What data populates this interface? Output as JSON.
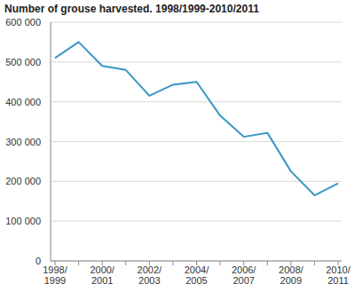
{
  "chart_data": {
    "type": "line",
    "title": "Number of grouse harvested. 1998/1999-2010/2011",
    "categories": [
      "1998/1999",
      null,
      "2000/2001",
      null,
      "2002/2003",
      null,
      "2004/2005",
      null,
      "2006/2007",
      null,
      "2008/2009",
      null,
      "2010/2011"
    ],
    "values": [
      510000,
      550000,
      490000,
      480000,
      415000,
      443000,
      450000,
      365000,
      312000,
      322000,
      225000,
      165000,
      195000
    ],
    "color": "#3a96c6",
    "ylim": [
      0,
      600000
    ],
    "yticks": [
      0,
      {
        "value": 100000,
        "label": "100 000"
      },
      {
        "value": 200000,
        "label": "200 000"
      },
      {
        "value": 300000,
        "label": "300 000"
      },
      {
        "value": 400000,
        "label": "400 000"
      },
      {
        "value": 500000,
        "label": "500 000"
      },
      {
        "value": 600000,
        "label": "600 000"
      }
    ],
    "grid": true
  }
}
